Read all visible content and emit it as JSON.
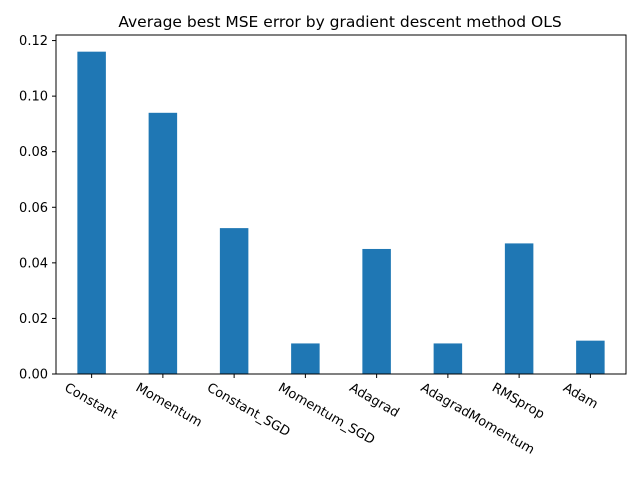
{
  "chart_data": {
    "type": "bar",
    "title": "Average best MSE error by gradient descent method OLS",
    "xlabel": "",
    "ylabel": "",
    "categories": [
      "Constant",
      "Momentum",
      "Constant_SGD",
      "Momentum_SGD",
      "Adagrad",
      "AdagradMomentum",
      "RMSprop",
      "Adam"
    ],
    "values": [
      0.116,
      0.094,
      0.0525,
      0.011,
      0.045,
      0.011,
      0.047,
      0.012
    ],
    "ylim": [
      0,
      0.122
    ],
    "yticks": [
      0.0,
      0.02,
      0.04,
      0.06,
      0.08,
      0.1,
      0.12
    ],
    "ytick_labels": [
      "0.00",
      "0.02",
      "0.04",
      "0.06",
      "0.08",
      "0.10",
      "0.12"
    ],
    "bar_color": "#1f77b4",
    "grid": false,
    "legend": "none"
  }
}
